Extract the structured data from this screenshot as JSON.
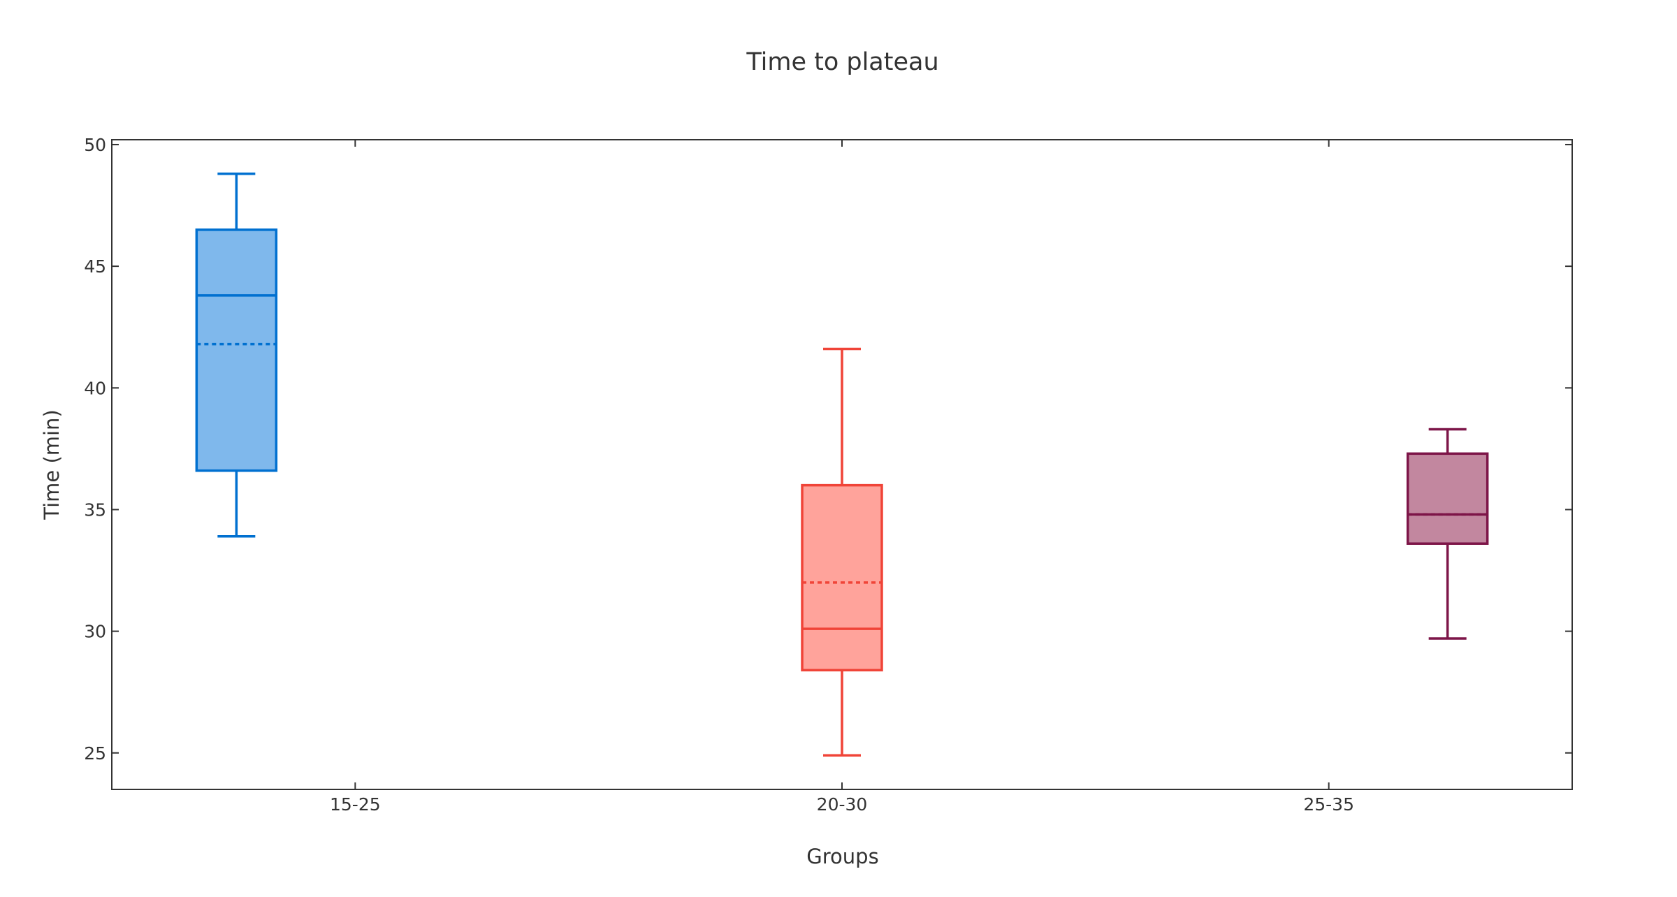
{
  "chart_data": {
    "type": "box",
    "title": "Time to plateau",
    "xlabel": "Groups",
    "ylabel": "Time (min)",
    "categories": [
      "15-25",
      "20-30",
      "25-35"
    ],
    "ylim": [
      23.5,
      50.2
    ],
    "yticks": [
      25,
      30,
      35,
      40,
      45,
      50
    ],
    "grid": false,
    "legend": "none",
    "series": [
      {
        "category": "15-25",
        "min": 33.9,
        "q1": 36.6,
        "median": 43.8,
        "mean": 41.8,
        "q3": 46.5,
        "max": 48.8,
        "line_color": "#0070d0",
        "fill_color": "#7fb8ec"
      },
      {
        "category": "20-30",
        "min": 24.9,
        "q1": 28.4,
        "median": 30.1,
        "mean": 32.0,
        "q3": 36.0,
        "max": 41.6,
        "line_color": "#f04438",
        "fill_color": "#ffa39b"
      },
      {
        "category": "25-35",
        "min": 29.7,
        "q1": 33.6,
        "median": 34.8,
        "mean": 34.8,
        "q3": 37.3,
        "max": 38.3,
        "line_color": "#7d1548",
        "fill_color": "#c2879f"
      }
    ]
  }
}
